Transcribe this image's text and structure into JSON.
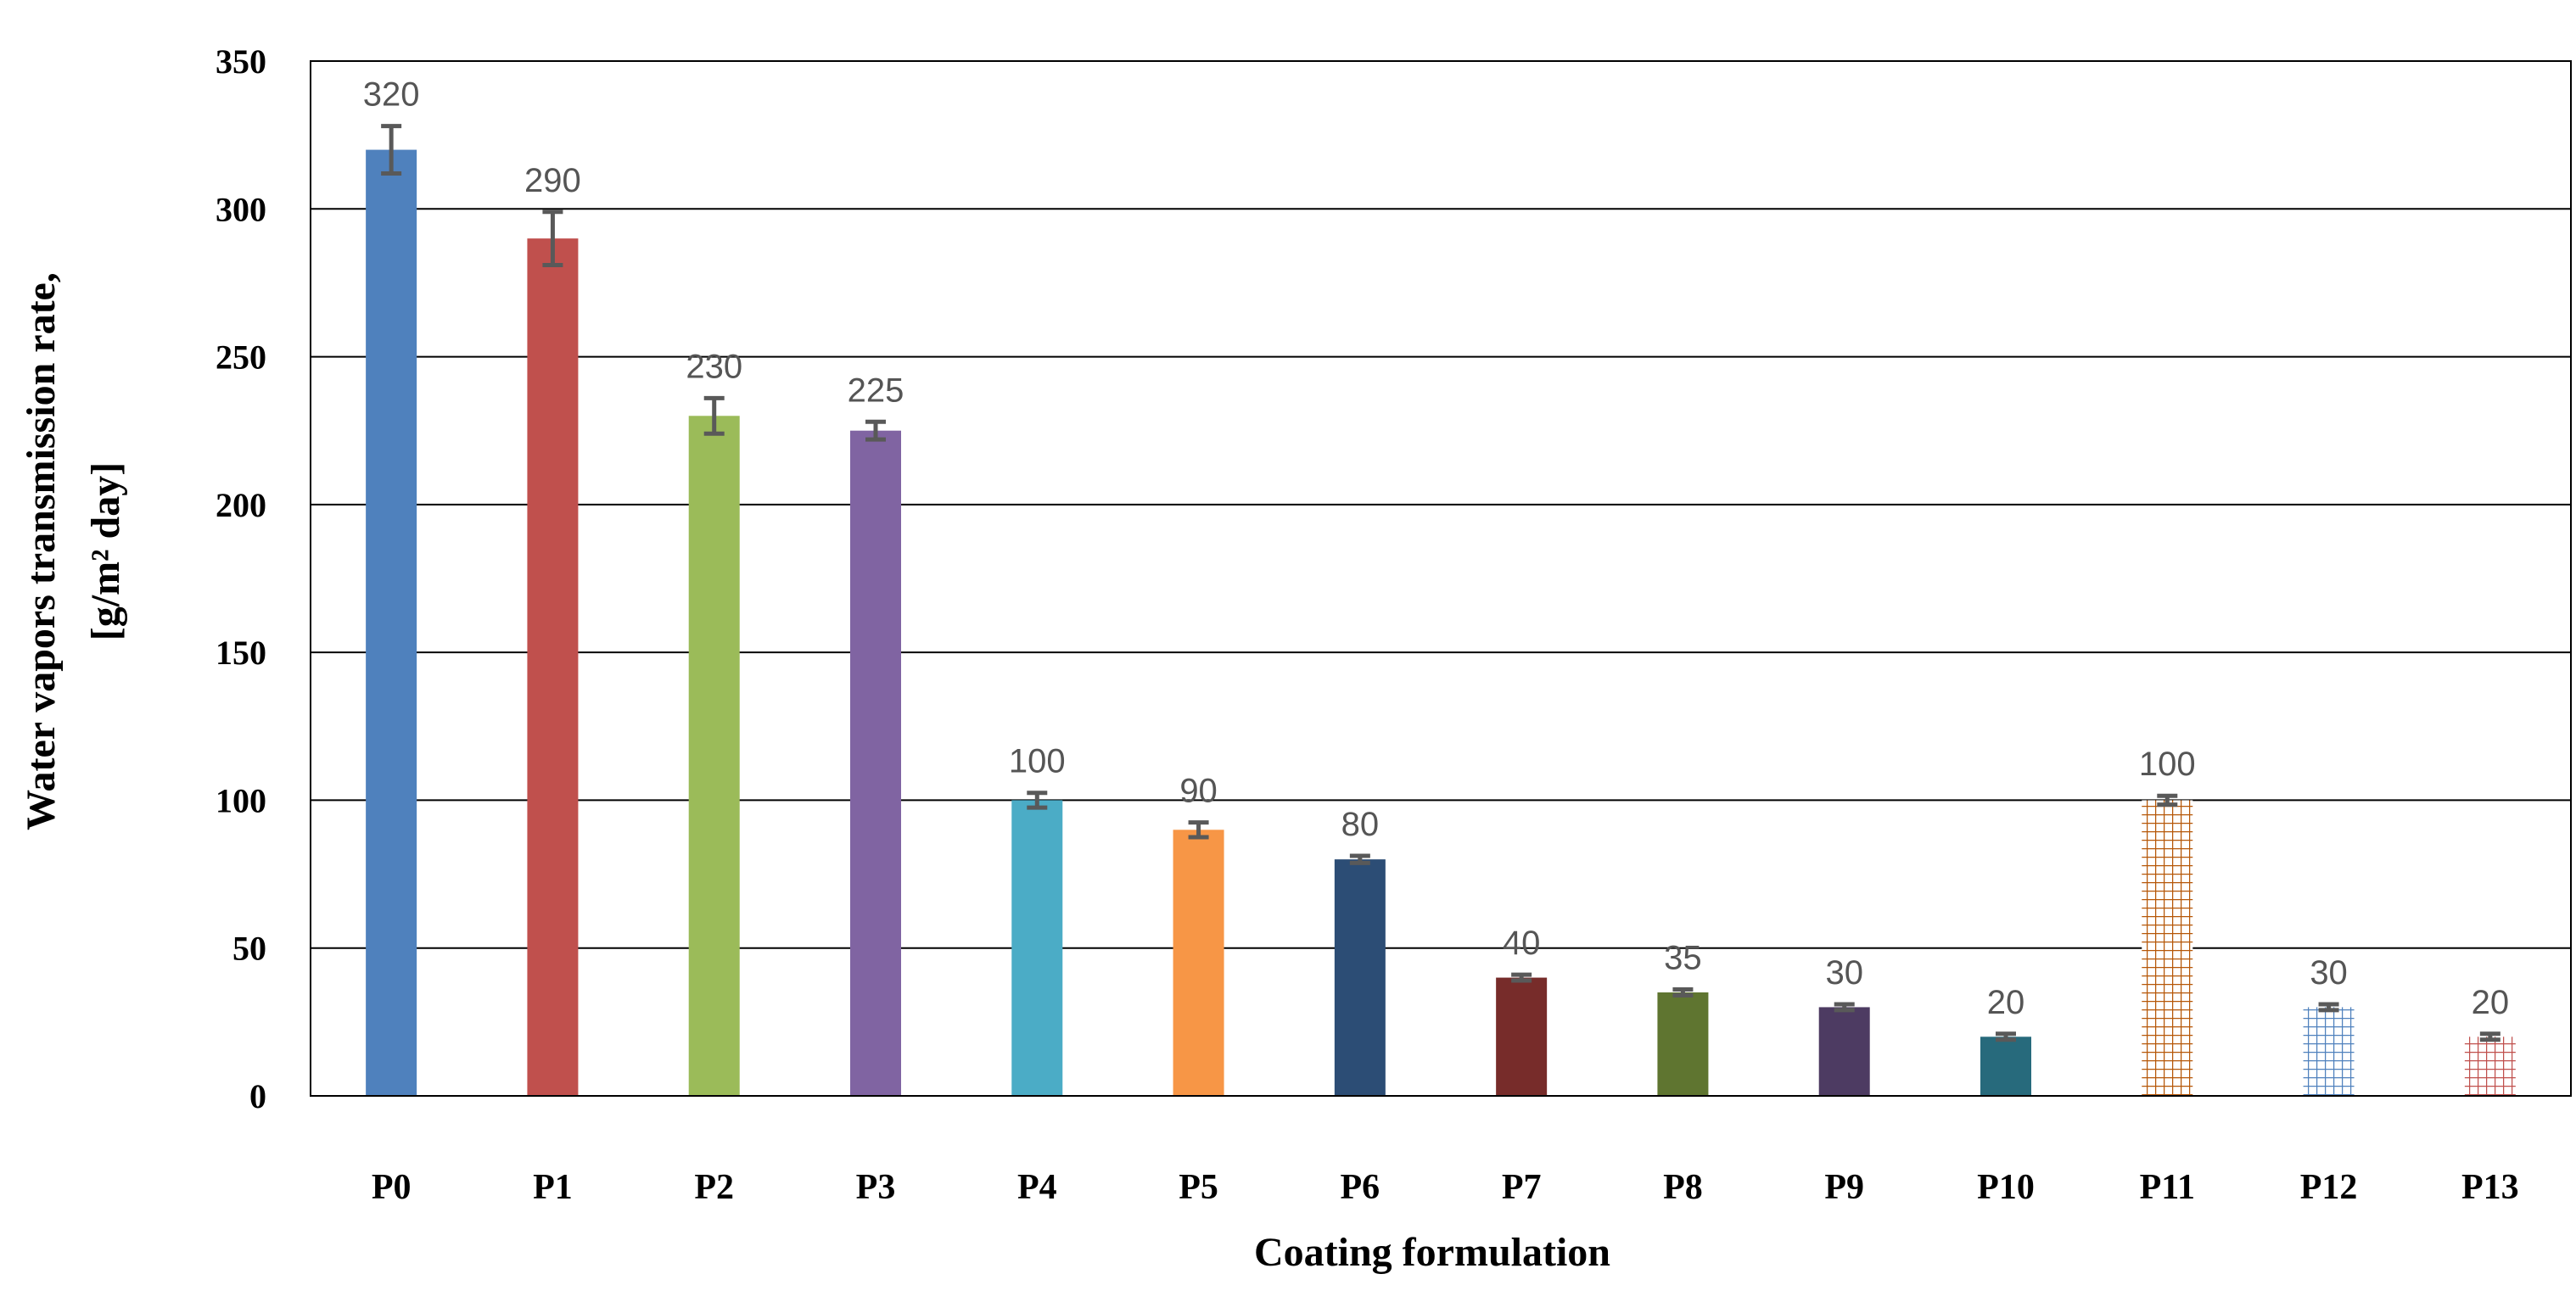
{
  "chart_data": {
    "type": "bar",
    "title": "",
    "xlabel": "Coating formulation",
    "ylabel_lines": [
      "Water vapors transmission rate,",
      "[g/m² day]"
    ],
    "ylim": [
      0,
      350
    ],
    "yticks": [
      0,
      50,
      100,
      150,
      200,
      250,
      300,
      350
    ],
    "grid": true,
    "categories": [
      "P0",
      "P1",
      "P2",
      "P3",
      "P4",
      "P5",
      "P6",
      "P7",
      "P8",
      "P9",
      "P10",
      "P11",
      "P12",
      "P13"
    ],
    "values": [
      320,
      290,
      230,
      225,
      100,
      90,
      80,
      40,
      35,
      30,
      20,
      100,
      30,
      20
    ],
    "errors": [
      8,
      9,
      6,
      3,
      2.5,
      2.5,
      1.2,
      1,
      1,
      1,
      1,
      1.5,
      1,
      1
    ],
    "colors": [
      "#4f81bd",
      "#c0504d",
      "#9bbb59",
      "#8064a2",
      "#4bacc6",
      "#f79646",
      "#2c4d75",
      "#772c2a",
      "#5f7530",
      "#4d3b62",
      "#276a7c",
      "#b65708",
      "#4f81bd",
      "#c0504d"
    ],
    "patterns": [
      "solid",
      "solid",
      "solid",
      "solid",
      "solid",
      "solid",
      "solid",
      "solid",
      "solid",
      "solid",
      "solid",
      "grid",
      "grid",
      "grid"
    ],
    "error_bar_color": "#595959"
  }
}
